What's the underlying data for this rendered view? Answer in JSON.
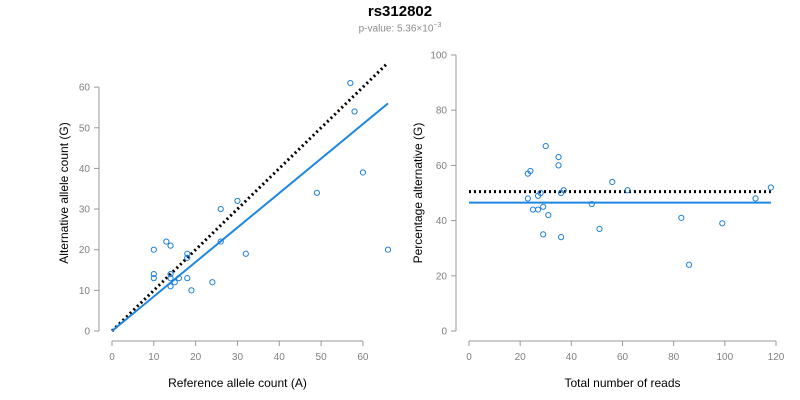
{
  "header": {
    "title": "rs312802",
    "subtitle_prefix": "p-value: 5.36×10",
    "subtitle_exp": "−3"
  },
  "colors": {
    "points": "#1f7fd6",
    "fit_line": "#1f87e0",
    "reference_line": "#000000",
    "axis": "#999999"
  },
  "chart_data": [
    {
      "type": "scatter",
      "title": "",
      "xlabel": "Reference allele count (A)",
      "ylabel": "Alternative allele count (G)",
      "xlim": [
        0,
        66
      ],
      "ylim": [
        0,
        62
      ],
      "xticks": [
        0,
        10,
        20,
        30,
        40,
        50,
        60
      ],
      "yticks": [
        0,
        10,
        20,
        30,
        40,
        50,
        60
      ],
      "grid": false,
      "points": [
        {
          "x": 10,
          "y": 20
        },
        {
          "x": 10,
          "y": 14
        },
        {
          "x": 10,
          "y": 13
        },
        {
          "x": 13,
          "y": 22
        },
        {
          "x": 14,
          "y": 21
        },
        {
          "x": 14,
          "y": 14
        },
        {
          "x": 14,
          "y": 13
        },
        {
          "x": 14,
          "y": 11
        },
        {
          "x": 15,
          "y": 12
        },
        {
          "x": 16,
          "y": 13
        },
        {
          "x": 18,
          "y": 19
        },
        {
          "x": 18,
          "y": 18
        },
        {
          "x": 18,
          "y": 13
        },
        {
          "x": 19,
          "y": 10
        },
        {
          "x": 24,
          "y": 12
        },
        {
          "x": 26,
          "y": 30
        },
        {
          "x": 26,
          "y": 22
        },
        {
          "x": 30,
          "y": 32
        },
        {
          "x": 32,
          "y": 19
        },
        {
          "x": 49,
          "y": 34
        },
        {
          "x": 57,
          "y": 61
        },
        {
          "x": 58,
          "y": 54
        },
        {
          "x": 60,
          "y": 39
        },
        {
          "x": 66,
          "y": 20
        }
      ],
      "lines": [
        {
          "style": "dotted",
          "color": "#000000",
          "x": [
            0,
            66
          ],
          "y": [
            0,
            66
          ]
        },
        {
          "style": "solid",
          "color": "#1f87e0",
          "x": [
            0,
            66
          ],
          "y": [
            0,
            56
          ]
        }
      ]
    },
    {
      "type": "scatter",
      "title": "",
      "xlabel": "Total number of reads",
      "ylabel": "Percentage alternative (G)",
      "xlim": [
        0,
        120
      ],
      "ylim": [
        0,
        100
      ],
      "xticks": [
        0,
        20,
        40,
        60,
        80,
        100,
        120
      ],
      "yticks": [
        0,
        20,
        40,
        60,
        80,
        100
      ],
      "grid": false,
      "points": [
        {
          "x": 23,
          "y": 48
        },
        {
          "x": 23,
          "y": 57
        },
        {
          "x": 24,
          "y": 58
        },
        {
          "x": 25,
          "y": 44
        },
        {
          "x": 27,
          "y": 44
        },
        {
          "x": 27,
          "y": 49
        },
        {
          "x": 28,
          "y": 50
        },
        {
          "x": 29,
          "y": 35
        },
        {
          "x": 29,
          "y": 45
        },
        {
          "x": 30,
          "y": 67
        },
        {
          "x": 31,
          "y": 42
        },
        {
          "x": 35,
          "y": 63
        },
        {
          "x": 35,
          "y": 60
        },
        {
          "x": 36,
          "y": 34
        },
        {
          "x": 36,
          "y": 50
        },
        {
          "x": 37,
          "y": 51
        },
        {
          "x": 48,
          "y": 46
        },
        {
          "x": 51,
          "y": 37
        },
        {
          "x": 56,
          "y": 54
        },
        {
          "x": 62,
          "y": 51
        },
        {
          "x": 83,
          "y": 41
        },
        {
          "x": 86,
          "y": 24
        },
        {
          "x": 99,
          "y": 39
        },
        {
          "x": 112,
          "y": 48
        },
        {
          "x": 118,
          "y": 52
        }
      ],
      "lines": [
        {
          "style": "dotted",
          "color": "#000000",
          "x": [
            0,
            118
          ],
          "y": [
            50.5,
            50.5
          ]
        },
        {
          "style": "solid",
          "color": "#1f87e0",
          "x": [
            0,
            118
          ],
          "y": [
            46.5,
            46.5
          ]
        }
      ]
    }
  ]
}
